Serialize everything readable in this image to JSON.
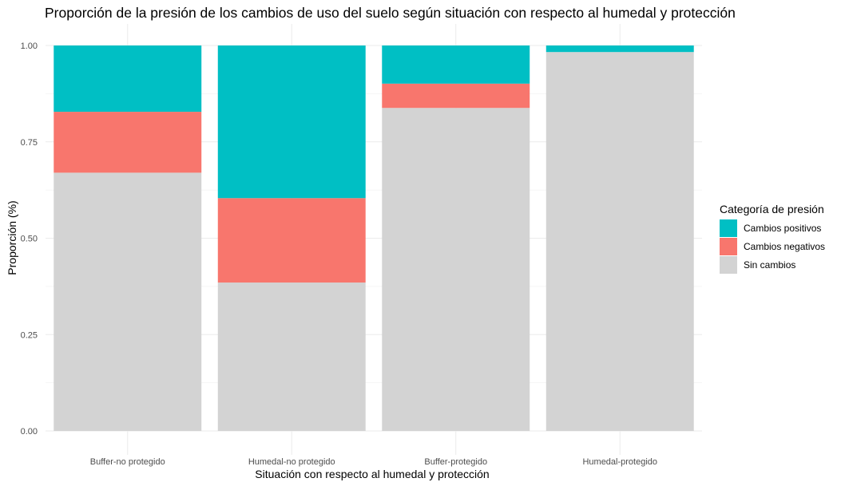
{
  "chart_data": {
    "type": "bar",
    "stacked": true,
    "title": "Proporción de la presión de los cambios de uso del suelo según situación con respecto al humedal y protección",
    "xlabel": "Situación con respecto al humedal y protección",
    "ylabel": "Proporción (%)",
    "ylim": [
      0,
      1
    ],
    "yticks": [
      "0.00",
      "0.25",
      "0.50",
      "0.75",
      "1.00"
    ],
    "grid": true,
    "legend_title": "Categoría de presión",
    "legend_position": "right",
    "categories": [
      "Buffer-no protegido",
      "Humedal-no protegido",
      "Buffer-protegido",
      "Humedal-protegido"
    ],
    "series": [
      {
        "name": "Sin cambios",
        "color": "#D3D3D3",
        "values": [
          0.67,
          0.385,
          0.838,
          0.983
        ]
      },
      {
        "name": "Cambios negativos",
        "color": "#F8766D",
        "values": [
          0.158,
          0.219,
          0.063,
          0.0
        ]
      },
      {
        "name": "Cambios positivos",
        "color": "#00BFC4",
        "values": [
          0.172,
          0.396,
          0.099,
          0.017
        ]
      }
    ],
    "legend_order": [
      "Cambios positivos",
      "Cambios negativos",
      "Sin cambios"
    ]
  }
}
